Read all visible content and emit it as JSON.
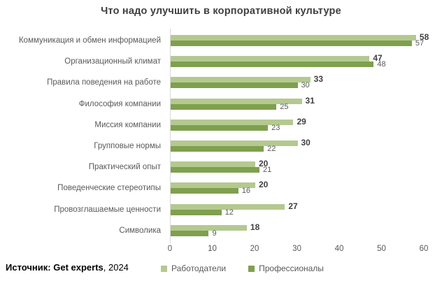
{
  "title": "Что надо улучшить в корпоративной культуре",
  "source": {
    "bold_part": "Источник: Get experts",
    "year_part": ", 2024"
  },
  "legend": {
    "employers_label": "Работодатели",
    "professionals_label": "Профессионалы"
  },
  "colors": {
    "employers": "#b4c990",
    "professionals": "#7fa04e",
    "title_text": "#3f3f3f",
    "label_text": "#595959",
    "value_bold_text": "#404040",
    "axis_line": "#d9d9d9"
  },
  "chart_data": {
    "type": "bar",
    "orientation": "horizontal",
    "title": "Что надо улучшить в корпоративной культуре",
    "categories": [
      "Коммуникация и обмен информацией",
      "Организационный климат",
      "Правила поведения на работе",
      "Философия компании",
      "Миссия компании",
      "Групповые нормы",
      "Практический опыт",
      "Поведенческие стереотипы",
      "Провозглашаемые ценности",
      "Символика"
    ],
    "series": [
      {
        "name": "Работодатели",
        "color": "#b4c990",
        "values": [
          58,
          47,
          33,
          31,
          29,
          30,
          20,
          20,
          27,
          18
        ]
      },
      {
        "name": "Профессионалы",
        "color": "#7fa04e",
        "values": [
          57,
          48,
          30,
          25,
          23,
          22,
          21,
          16,
          12,
          9
        ]
      }
    ],
    "xlabel": "",
    "ylabel": "",
    "xlim": [
      0,
      60
    ],
    "xticks": [
      0,
      10,
      20,
      30,
      40,
      50,
      60
    ],
    "grid": false,
    "legend_position": "bottom",
    "value_labels": true
  }
}
